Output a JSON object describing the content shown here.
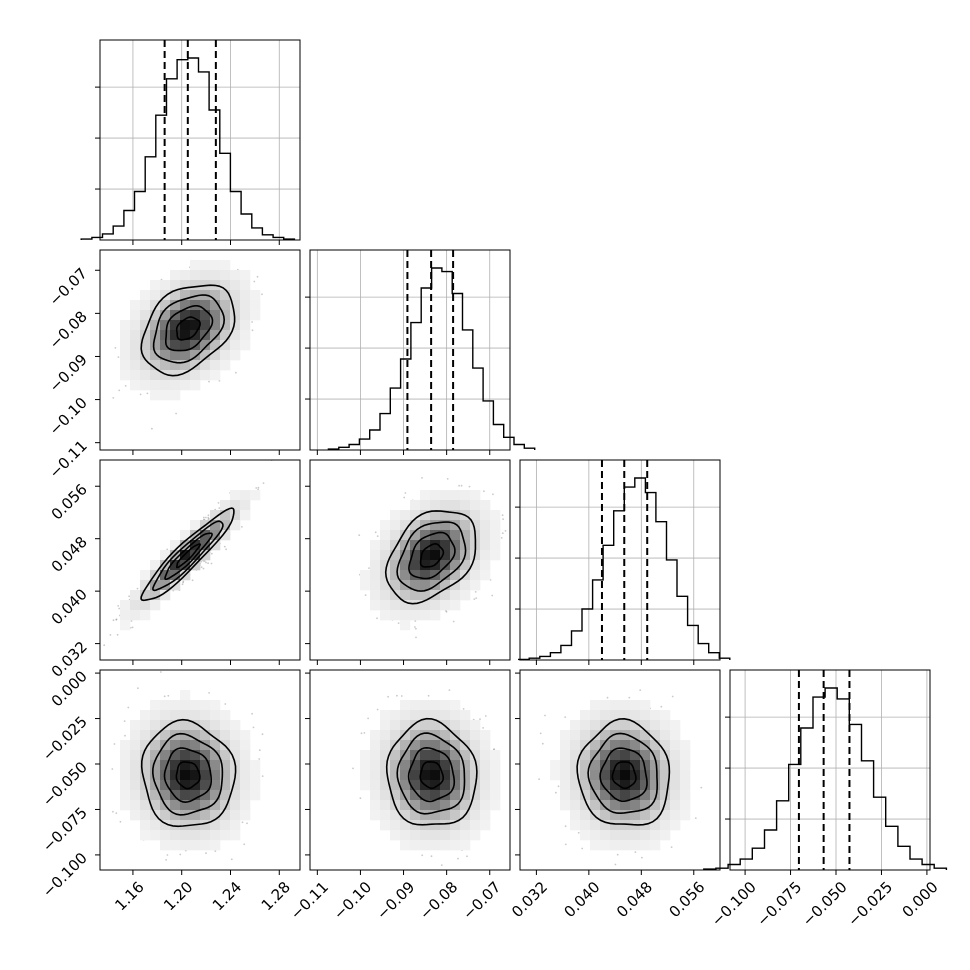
{
  "chart_data": {
    "type": "corner",
    "title": "",
    "grid": true,
    "params": [
      {
        "range": [
          1.133,
          1.297
        ],
        "ticks": [
          1.16,
          1.2,
          1.24,
          1.28
        ],
        "tick_labels": [
          "1.16",
          "1.20",
          "1.24",
          "1.28"
        ],
        "mean": 1.205,
        "sigma": 0.019,
        "quantiles": [
          1.186,
          1.205,
          1.228
        ]
      },
      {
        "range": [
          -0.1117,
          -0.0653
        ],
        "ticks": [
          -0.11,
          -0.1,
          -0.09,
          -0.08,
          -0.07
        ],
        "tick_labels": [
          "−0.11",
          "−0.10",
          "−0.09",
          "−0.08",
          "−0.07"
        ],
        "mean": -0.0835,
        "sigma": 0.0052,
        "quantiles": [
          -0.0891,
          -0.0836,
          -0.0785
        ]
      },
      {
        "range": [
          0.0295,
          0.06
        ],
        "ticks": [
          0.032,
          0.04,
          0.048,
          0.056
        ],
        "tick_labels": [
          "0.032",
          "0.040",
          "0.048",
          "0.056"
        ],
        "mean": 0.0454,
        "sigma": 0.0035,
        "quantiles": [
          0.042,
          0.0454,
          0.0489
        ]
      },
      {
        "range": [
          -0.1083,
          0.0017
        ],
        "ticks": [
          -0.1,
          -0.075,
          -0.05,
          -0.025,
          0.0
        ],
        "tick_labels": [
          "−0.100",
          "−0.075",
          "−0.050",
          "−0.025",
          "0.000"
        ],
        "mean": -0.056,
        "sigma": 0.0145,
        "quantiles": [
          -0.0704,
          -0.0568,
          -0.0426
        ]
      }
    ],
    "correlations": [
      {
        "pair": [
          0,
          1
        ],
        "r": 0.35
      },
      {
        "pair": [
          0,
          2
        ],
        "r": 0.93
      },
      {
        "pair": [
          1,
          2
        ],
        "r": 0.35
      },
      {
        "pair": [
          0,
          3
        ],
        "r": -0.05
      },
      {
        "pair": [
          1,
          3
        ],
        "r": -0.05
      },
      {
        "pair": [
          2,
          3
        ],
        "r": -0.05
      }
    ],
    "histograms": [
      [
        0.5,
        1.5,
        3.5,
        8,
        17,
        28,
        48,
        72,
        93,
        104,
        105,
        97,
        75,
        50,
        28,
        15,
        7,
        3,
        1.5,
        0.5
      ],
      [
        0.5,
        1.5,
        3,
        6,
        11,
        20,
        34,
        50,
        70,
        89,
        100,
        98,
        86,
        66,
        45,
        27,
        14,
        7,
        3,
        1
      ],
      [
        0.3,
        1,
        2,
        4,
        8,
        16,
        28,
        44,
        63,
        82,
        95,
        100,
        92,
        76,
        55,
        35,
        19,
        9,
        4,
        1
      ],
      [
        0.5,
        1,
        3,
        6,
        12,
        22,
        38,
        58,
        78,
        95,
        100,
        94,
        80,
        60,
        40,
        24,
        13,
        6,
        3,
        1
      ]
    ]
  }
}
